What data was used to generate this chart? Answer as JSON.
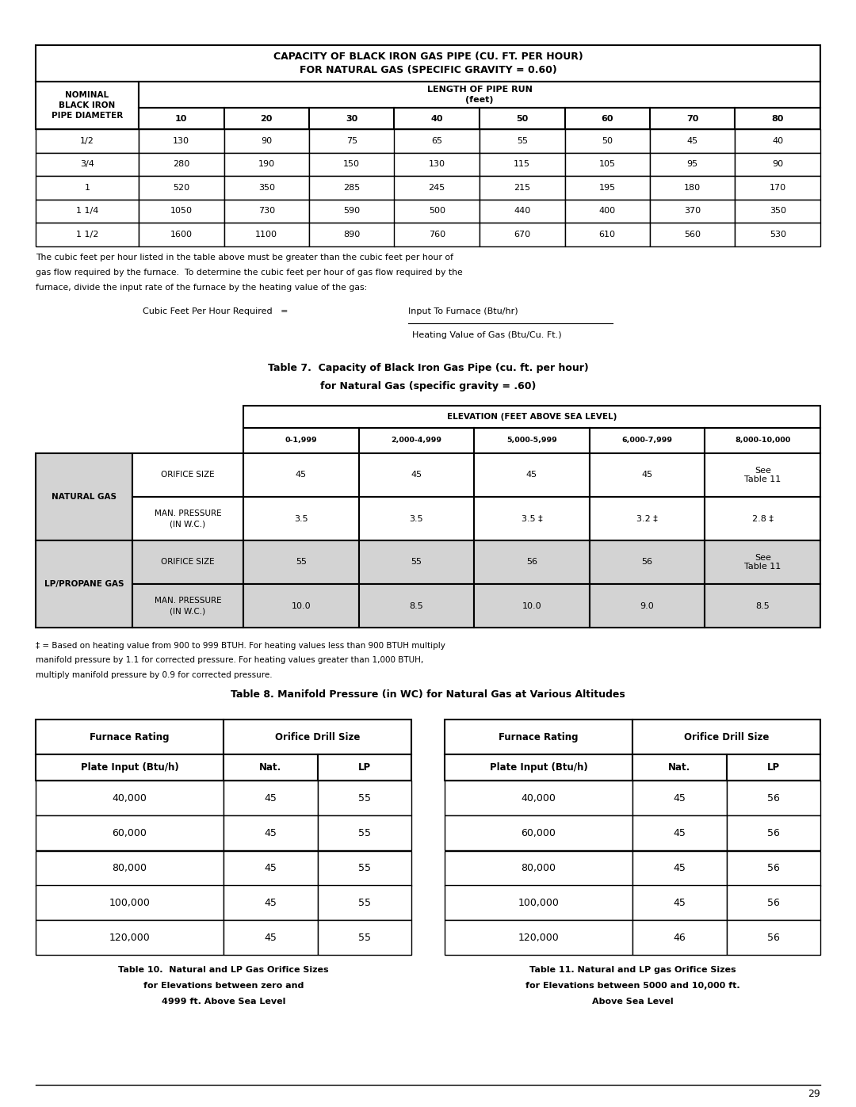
{
  "page_number": "29",
  "table1_title": [
    "CAPACITY OF BLACK IRON GAS PIPE (CU. FT. PER HOUR)",
    "FOR NATURAL GAS (SPECIFIC GRAVITY = 0.60)"
  ],
  "table1_lengths": [
    "10",
    "20",
    "30",
    "40",
    "50",
    "60",
    "70",
    "80"
  ],
  "table1_data": [
    [
      "1/2",
      "130",
      "90",
      "75",
      "65",
      "55",
      "50",
      "45",
      "40"
    ],
    [
      "3/4",
      "280",
      "190",
      "150",
      "130",
      "115",
      "105",
      "95",
      "90"
    ],
    [
      "1",
      "520",
      "350",
      "285",
      "245",
      "215",
      "195",
      "180",
      "170"
    ],
    [
      "1 1/4",
      "1050",
      "730",
      "590",
      "500",
      "440",
      "400",
      "370",
      "350"
    ],
    [
      "1 1/2",
      "1600",
      "1100",
      "890",
      "760",
      "670",
      "610",
      "560",
      "530"
    ]
  ],
  "para_lines": [
    "The cubic feet per hour listed in the table above must be greater than the cubic feet per hour of",
    "gas flow required by the furnace.  To determine the cubic feet per hour of gas flow required by the",
    "furnace, divide the input rate of the furnace by the heating value of the gas:"
  ],
  "formula_left": "Cubic Feet Per Hour Required   =",
  "formula_numerator": "Input To Furnace (Btu/hr)",
  "formula_denominator": "Heating Value of Gas (Btu/Cu. Ft.)",
  "table7_title1": "Table 7.  Capacity of Black Iron Gas Pipe (cu. ft. per hour)",
  "table7_title2": "for Natural Gas (specific gravity = .60)",
  "table7_elevation_header": "ELEVATION (FEET ABOVE SEA LEVEL)",
  "table7_elevation_cols": [
    "0-1,999",
    "2,000-4,999",
    "5,000-5,999",
    "6,000-7,999",
    "8,000-10,000"
  ],
  "table7_row1_vals": [
    "45",
    "45",
    "45",
    "45",
    "See\nTable 11"
  ],
  "table7_row2_vals": [
    "3.5",
    "3.5",
    "3.5 ‡",
    "3.2 ‡",
    "2.8 ‡"
  ],
  "table7_row3_vals": [
    "55",
    "55",
    "56",
    "56",
    "See\nTable 11"
  ],
  "table7_row4_vals": [
    "10.0",
    "8.5",
    "10.0",
    "9.0",
    "8.5"
  ],
  "footnote_lines": [
    "‡ = Based on heating value from 900 to 999 BTUH. For heating values less than 900 BTUH multiply",
    "manifold pressure by 1.1 for corrected pressure. For heating values greater than 1,000 BTUH,",
    "multiply manifold pressure by 0.9 for corrected pressure."
  ],
  "table8_title": "Table 8. Manifold Pressure (in WC) for Natural Gas at Various Altitudes",
  "table10_data": [
    [
      "40,000",
      "45",
      "55"
    ],
    [
      "60,000",
      "45",
      "55"
    ],
    [
      "80,000",
      "45",
      "55"
    ],
    [
      "100,000",
      "45",
      "55"
    ],
    [
      "120,000",
      "45",
      "55"
    ]
  ],
  "table11_data": [
    [
      "40,000",
      "45",
      "56"
    ],
    [
      "60,000",
      "45",
      "56"
    ],
    [
      "80,000",
      "45",
      "56"
    ],
    [
      "100,000",
      "45",
      "56"
    ],
    [
      "120,000",
      "46",
      "56"
    ]
  ],
  "table10_caption": [
    "Table 10.  Natural and LP Gas Orifice Sizes",
    "for Elevations between zero and",
    "4999 ft. Above Sea Level"
  ],
  "table11_caption": [
    "Table 11. Natural and LP gas Orifice Sizes",
    "for Elevations between 5000 and 10,000 ft.",
    "Above Sea Level"
  ]
}
